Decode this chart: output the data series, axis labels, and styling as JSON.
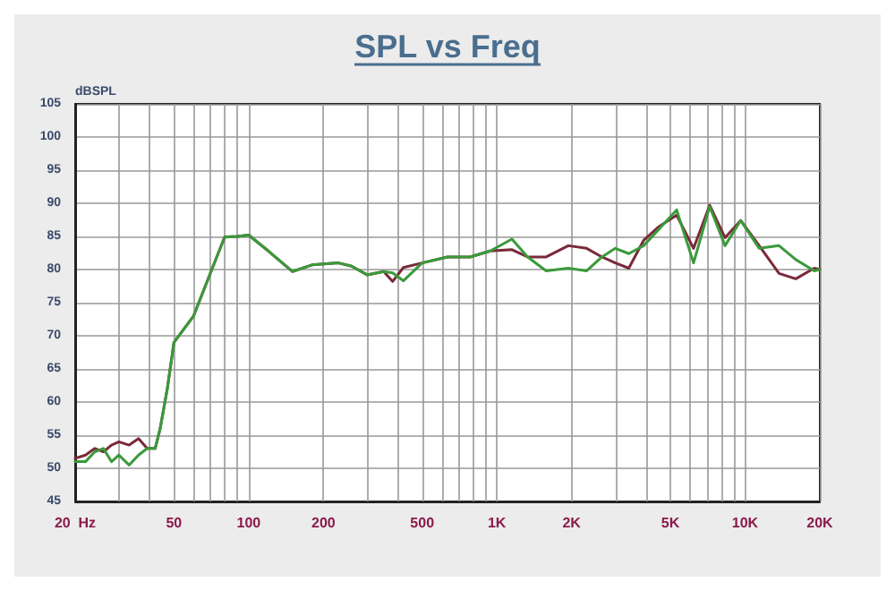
{
  "chart_data": {
    "type": "line",
    "title": "SPL vs Freq",
    "ylabel": "dBSPL",
    "log": "x",
    "grid": true,
    "marker": "none",
    "line_style": "solid",
    "xlim": [
      20,
      20000
    ],
    "ylim": [
      45,
      105
    ],
    "xticks": [
      {
        "value": 20,
        "label": "20  Hz"
      },
      {
        "value": 30,
        "label": null
      },
      {
        "value": 40,
        "label": null
      },
      50,
      {
        "value": 60,
        "label": null
      },
      {
        "value": 70,
        "label": null
      },
      {
        "value": 80,
        "label": null
      },
      {
        "value": 90,
        "label": null
      },
      100,
      200,
      {
        "value": 300,
        "label": null
      },
      {
        "value": 400,
        "label": null
      },
      500,
      {
        "value": 600,
        "label": null
      },
      {
        "value": 700,
        "label": null
      },
      {
        "value": 800,
        "label": null
      },
      {
        "value": 900,
        "label": null
      },
      {
        "value": 1000,
        "label": "1K"
      },
      {
        "value": 2000,
        "label": "2K"
      },
      {
        "value": 3000,
        "label": null
      },
      {
        "value": 4000,
        "label": null
      },
      {
        "value": 5000,
        "label": "5K"
      },
      {
        "value": 6000,
        "label": null
      },
      {
        "value": 7000,
        "label": null
      },
      {
        "value": 8000,
        "label": null
      },
      {
        "value": 9000,
        "label": null
      },
      {
        "value": 10000,
        "label": "10K"
      },
      {
        "value": 20000,
        "label": "20K"
      }
    ],
    "yticks": [
      45,
      50,
      55,
      60,
      65,
      70,
      75,
      80,
      85,
      90,
      95,
      100,
      105
    ],
    "x": [
      20,
      22,
      24,
      26,
      28,
      30,
      33,
      36,
      39,
      42,
      44,
      47,
      50,
      60,
      70,
      80,
      90,
      100,
      120,
      150,
      180,
      230,
      260,
      300,
      350,
      380,
      420,
      500,
      632,
      780,
      940,
      1150,
      1330,
      1580,
      1940,
      2300,
      2650,
      3000,
      3400,
      3900,
      4500,
      5300,
      6200,
      7200,
      8300,
      9600,
      11400,
      13700,
      16000,
      19000,
      20000
    ],
    "series": [
      {
        "color": "#7a2a3a",
        "values": [
          51.5,
          52,
          53,
          52.5,
          53.5,
          54,
          53.5,
          54.5,
          53,
          53,
          56,
          62,
          69,
          73,
          79.4,
          84.9,
          85,
          85.2,
          82.8,
          79.7,
          80.7,
          81,
          80.5,
          79.2,
          79.7,
          78.2,
          80.3,
          81,
          81.9,
          81.9,
          82.8,
          83,
          81.9,
          81.9,
          83.6,
          83.2,
          81.9,
          81,
          80.2,
          84.4,
          86.5,
          88.2,
          83.2,
          89.7,
          84.8,
          87.4,
          83.6,
          79.4,
          78.6,
          80.2,
          80
        ]
      },
      {
        "color": "#3a9a3a",
        "values": [
          51,
          51,
          52.5,
          53,
          51,
          52,
          50.5,
          52,
          53,
          53,
          56,
          62,
          69,
          73,
          79.4,
          84.9,
          85,
          85.2,
          82.8,
          79.7,
          80.7,
          81,
          80.5,
          79.2,
          79.7,
          79.5,
          78.3,
          81,
          81.9,
          81.9,
          82.8,
          84.6,
          81.9,
          79.8,
          80.2,
          79.8,
          81.9,
          83.2,
          82.4,
          83.6,
          86.1,
          89,
          81,
          89.5,
          83.6,
          87.4,
          83.2,
          83.6,
          81.5,
          79.8,
          80
        ]
      }
    ]
  }
}
